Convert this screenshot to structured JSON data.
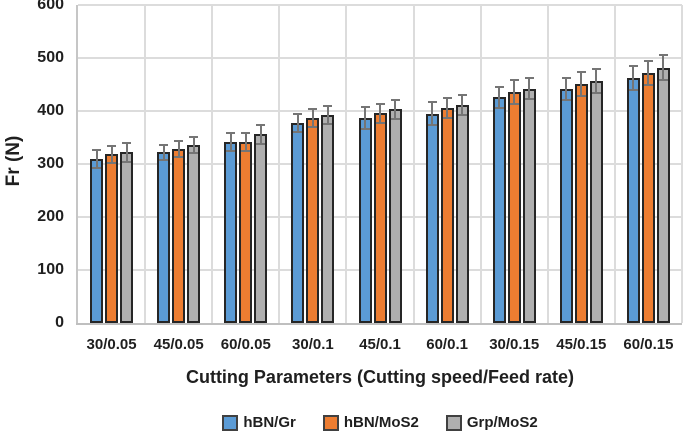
{
  "chart_data": {
    "type": "bar",
    "xlabel": "Cutting Parameters (Cutting speed/Feed rate)",
    "ylabel": "Fr (N)",
    "ylim": [
      0,
      600
    ],
    "yticks": [
      0,
      100,
      200,
      300,
      400,
      500,
      600
    ],
    "grid": {
      "horizontal": true,
      "vertical_category_separators": true
    },
    "legend_position": "bottom",
    "categories": [
      "30/0.05",
      "45/0.05",
      "60/0.05",
      "30/0.1",
      "45/0.1",
      "60/0.1",
      "30/0.15",
      "45/0.15",
      "60/0.15"
    ],
    "series": [
      {
        "name": "hBN/Gr",
        "color": "#5B9BD5",
        "values": [
          310,
          322,
          341,
          377,
          387,
          395,
          426,
          441,
          462
        ],
        "errors": [
          19,
          16,
          19,
          19,
          22,
          23,
          22,
          23,
          24
        ]
      },
      {
        "name": "hBN/MoS2",
        "color": "#ED7D31",
        "values": [
          318,
          328,
          342,
          386,
          396,
          406,
          436,
          451,
          472
        ],
        "errors": [
          18,
          17,
          19,
          19,
          20,
          21,
          24,
          24,
          25
        ]
      },
      {
        "name": "Grp/MoS2",
        "color": "#AFAFAF",
        "values": [
          322,
          335,
          356,
          393,
          403,
          411,
          442,
          457,
          482
        ],
        "errors": [
          20,
          17,
          20,
          19,
          20,
          21,
          22,
          24,
          26
        ]
      }
    ],
    "colors": {
      "bar_border": "#262626",
      "error_bar": "#757575",
      "gridline": "#DCDCDC",
      "axis_line": "#BFBFBF",
      "text": "#1F1F1F",
      "background": "#FFFFFF"
    }
  }
}
